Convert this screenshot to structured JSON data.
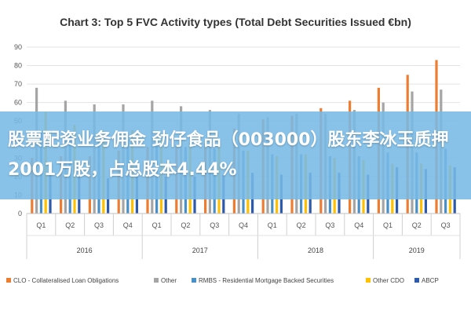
{
  "chart_data": {
    "type": "bar",
    "title": "Chart 3: Top 5 FVC Activity types (Total Debt Securities Issued €bn)",
    "xlabel": "",
    "ylabel": "",
    "ylim": [
      0,
      90
    ],
    "yticks": [
      0,
      10,
      20,
      30,
      40,
      50,
      60,
      70,
      80,
      90
    ],
    "grid": true,
    "legend_position": "bottom",
    "categories": [
      "Q1",
      "Q2",
      "Q3",
      "Q4",
      "Q1",
      "Q2",
      "Q3",
      "Q4",
      "Q1",
      "Q2",
      "Q3",
      "Q4",
      "Q1",
      "Q2",
      "Q3"
    ],
    "year_groups": [
      {
        "label": "2016",
        "count": 4
      },
      {
        "label": "2017",
        "count": 4
      },
      {
        "label": "2018",
        "count": 4
      },
      {
        "label": "2019",
        "count": 3
      }
    ],
    "series": [
      {
        "name": "CLO - Collateralised Loan Obligations",
        "color": "#ED7D31",
        "values": [
          30,
          31,
          31,
          34,
          36,
          37,
          38,
          46,
          51,
          53,
          57,
          61,
          68,
          75,
          83
        ]
      },
      {
        "name": "Other",
        "color": "#A5A5A5",
        "values": [
          68,
          61,
          59,
          59,
          61,
          58,
          56,
          54,
          52,
          54,
          54,
          56,
          60,
          66,
          67
        ]
      },
      {
        "name": "RMBS - Residential Mortgage Backed Securities",
        "color": "#4A90C8",
        "values": [
          45,
          44,
          40,
          40,
          39,
          36,
          35,
          34,
          32,
          32,
          31,
          31,
          33,
          33,
          35
        ]
      },
      {
        "name": "Other CDO",
        "color": "#FFC000",
        "values": [
          55,
          48,
          45,
          45,
          40,
          38,
          37,
          34,
          31,
          32,
          30,
          29,
          27,
          27,
          26
        ]
      },
      {
        "name": "ABCP",
        "color": "#2E5AAC",
        "values": [
          22,
          20,
          19,
          20,
          20,
          20,
          21,
          22,
          21,
          22,
          22,
          21,
          25,
          24,
          25
        ]
      }
    ]
  },
  "overlay": {
    "text": "股票配资业务佣金 劲仔食品（003000）股东李冰玉质押2001万股，占总股本4.44%"
  }
}
